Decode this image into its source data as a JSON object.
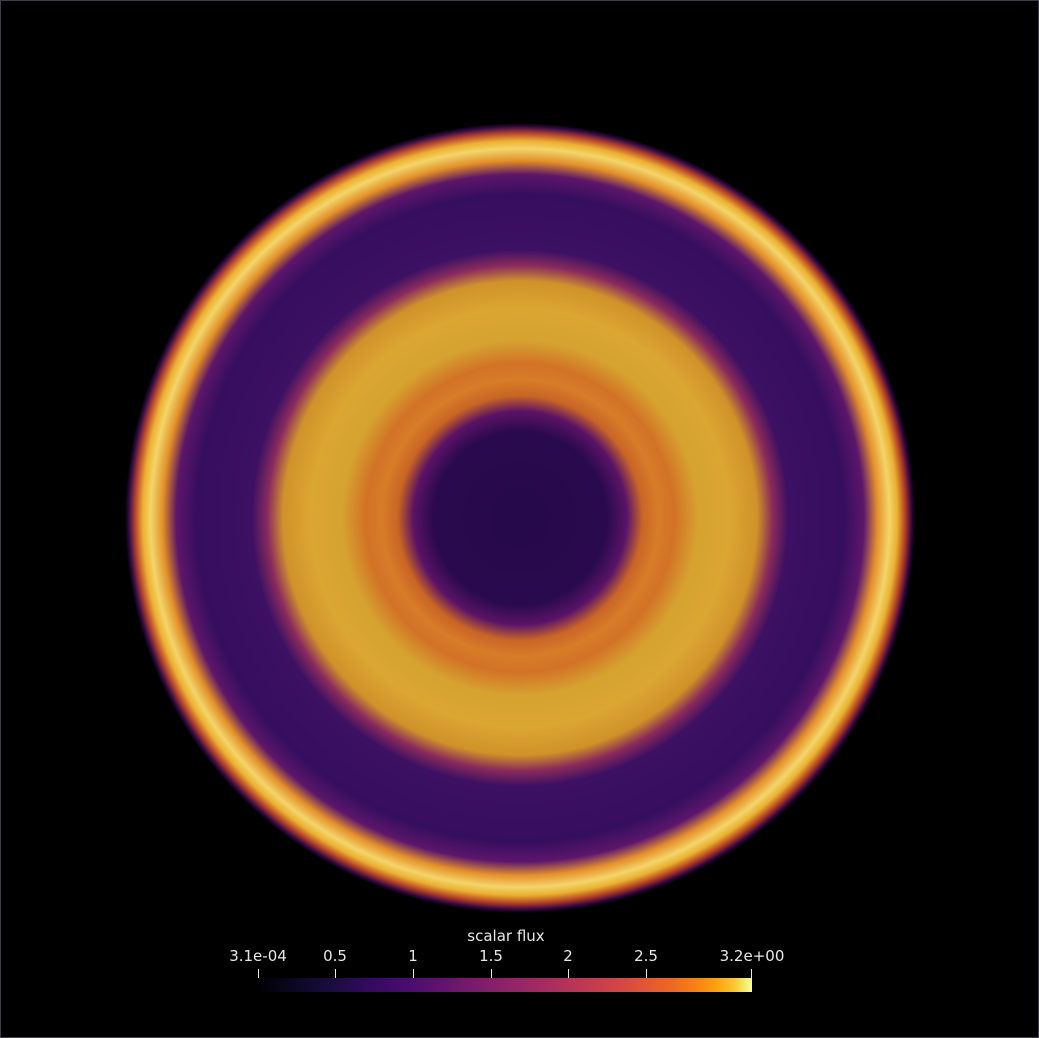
{
  "scene": {
    "background": "#000000",
    "colormap": "inferno"
  },
  "colorbar": {
    "title": "scalar flux",
    "ticks": [
      "3.1e-04",
      "0.5",
      "1",
      "1.5",
      "2",
      "2.5",
      "3.2e+00"
    ],
    "min": 0.00031,
    "max": 3.2
  },
  "rings": [
    {
      "zone": "outer shell",
      "color": "#f3d56a",
      "level": "high"
    },
    {
      "zone": "outer band",
      "color": "#3a0f62",
      "level": "low"
    },
    {
      "zone": "middle annulus",
      "color": "#d6a230",
      "level": "high"
    },
    {
      "zone": "inner ring",
      "color": "#d2782a",
      "level": "medium"
    },
    {
      "zone": "core",
      "color": "#2a0a4e",
      "level": "low"
    }
  ]
}
